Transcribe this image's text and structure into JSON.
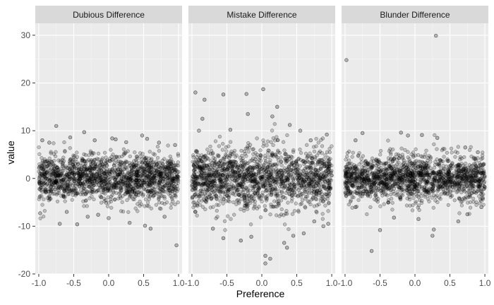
{
  "chart_data": {
    "type": "scatter",
    "xlabel": "Preference",
    "ylabel": "value",
    "xlim": [
      -1.05,
      1.05
    ],
    "ylim": [
      -20,
      32.5
    ],
    "x_ticks": [
      -1.0,
      -0.5,
      0.0,
      0.5,
      1.0
    ],
    "x_tick_labels": [
      "-1.0",
      "-0.5",
      "0.0",
      "0.5",
      "1.0"
    ],
    "y_ticks": [
      -20,
      -10,
      0,
      10,
      20,
      30
    ],
    "y_tick_labels": [
      "-20",
      "-10",
      "0",
      "10",
      "20",
      "30"
    ],
    "grid": true,
    "point_color": "#000000",
    "panel_background": "#ebebeb",
    "strip_background": "#d9d9d9",
    "panels": [
      {
        "name": "Dubious Difference",
        "spread": 2.4,
        "points": [
          [
            -0.75,
            11.0
          ],
          [
            -0.95,
            8.0
          ],
          [
            -0.85,
            7.5
          ],
          [
            -0.55,
            8.6
          ],
          [
            -0.35,
            9.7
          ],
          [
            0.05,
            8.4
          ],
          [
            0.1,
            8.2
          ],
          [
            0.48,
            9.0
          ],
          [
            0.55,
            8.3
          ],
          [
            0.72,
            7.5
          ],
          [
            0.95,
            7.0
          ],
          [
            -0.98,
            -7.3
          ],
          [
            -0.7,
            -9.5
          ],
          [
            -0.45,
            -9.6
          ],
          [
            -0.3,
            -8.0
          ],
          [
            0.0,
            -8.3
          ],
          [
            0.3,
            -9.3
          ],
          [
            0.52,
            -9.9
          ],
          [
            0.6,
            -10.5
          ],
          [
            0.97,
            -14.0
          ],
          [
            0.8,
            -8.0
          ],
          [
            -0.15,
            -7.6
          ],
          [
            -0.6,
            -7.0
          ],
          [
            0.25,
            7.6
          ],
          [
            -0.2,
            8.0
          ]
        ]
      },
      {
        "name": "Mistake Difference",
        "spread": 3.2,
        "points": [
          [
            -0.95,
            18.0
          ],
          [
            -0.82,
            16.5
          ],
          [
            -0.55,
            17.6
          ],
          [
            -0.22,
            17.7
          ],
          [
            0.02,
            18.7
          ],
          [
            0.22,
            15.0
          ],
          [
            0.15,
            13.0
          ],
          [
            -0.2,
            13.5
          ],
          [
            -0.85,
            12.5
          ],
          [
            -0.9,
            10.0
          ],
          [
            0.4,
            11.2
          ],
          [
            0.93,
            9.2
          ],
          [
            0.7,
            8.0
          ],
          [
            -0.45,
            10.2
          ],
          [
            0.55,
            10.0
          ],
          [
            0.05,
            -16.2
          ],
          [
            0.12,
            -16.8
          ],
          [
            0.36,
            -14.5
          ],
          [
            0.05,
            -17.8
          ],
          [
            -0.3,
            -13.0
          ],
          [
            -0.55,
            -12.5
          ],
          [
            0.45,
            -12.0
          ],
          [
            0.88,
            -10.0
          ],
          [
            -0.95,
            -7.0
          ],
          [
            0.6,
            -11.5
          ],
          [
            0.32,
            -13.5
          ],
          [
            0.95,
            -9.5
          ],
          [
            -0.7,
            -10.5
          ],
          [
            -0.15,
            -12.2
          ],
          [
            0.75,
            -9.0
          ]
        ]
      },
      {
        "name": "Blunder Difference",
        "spread": 2.4,
        "points": [
          [
            -0.98,
            24.8
          ],
          [
            0.3,
            29.9
          ],
          [
            -0.85,
            8.0
          ],
          [
            -0.75,
            9.5
          ],
          [
            -0.2,
            9.6
          ],
          [
            -0.1,
            9.0
          ],
          [
            0.1,
            9.1
          ],
          [
            0.32,
            8.5
          ],
          [
            0.72,
            6.5
          ],
          [
            0.9,
            5.5
          ],
          [
            -0.62,
            -15.2
          ],
          [
            -0.5,
            -10.8
          ],
          [
            0.25,
            -12.0
          ],
          [
            0.27,
            -10.7
          ],
          [
            0.62,
            -9.0
          ],
          [
            0.75,
            -7.5
          ],
          [
            -0.85,
            -6.0
          ],
          [
            0.95,
            -6.0
          ],
          [
            -0.3,
            -8.2
          ],
          [
            0.05,
            -8.5
          ]
        ]
      }
    ]
  }
}
